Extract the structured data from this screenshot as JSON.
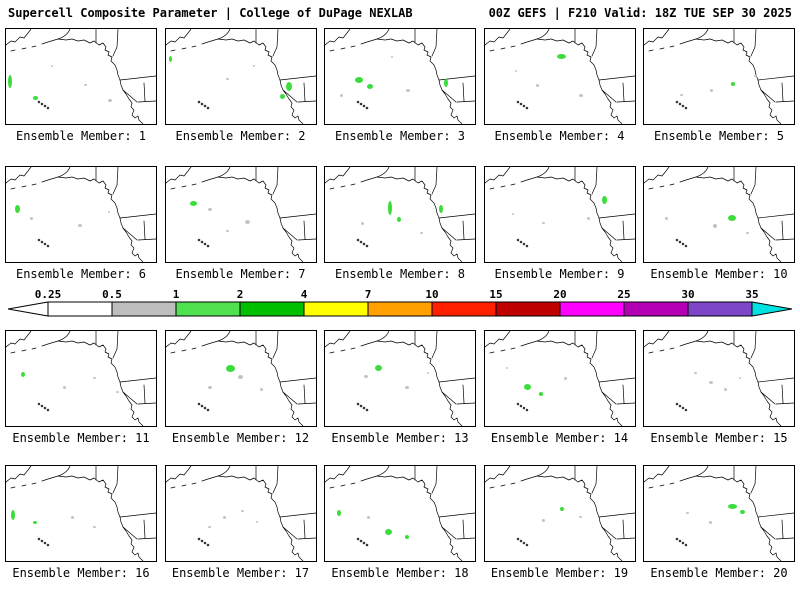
{
  "header": {
    "left": "Supercell Composite Parameter | College of DuPage NEXLAB",
    "right": "00Z GEFS | F210 Valid: 18Z TUE SEP 30 2025"
  },
  "colorbar": {
    "tick_labels": [
      "0.25",
      "0.5",
      "1",
      "2",
      "4",
      "7",
      "10",
      "15",
      "20",
      "25",
      "30",
      "35"
    ],
    "segment_colors": [
      "#ffffff",
      "#bebebe",
      "#50e150",
      "#00be00",
      "#ffff00",
      "#ffa000",
      "#ff2000",
      "#be0000",
      "#ff00ff",
      "#b400b4",
      "#7d46c8"
    ],
    "left_arrow_color": "#ffffff",
    "right_arrow_color": "#00e1e1",
    "border_color": "#000000"
  },
  "speckle_colors": {
    "g": "#3cdc3c",
    "y": "#c3c3c3"
  },
  "members": [
    {
      "label": "Ensemble Member: 1",
      "speckles": [
        [
          1,
          48,
          4,
          13,
          "g"
        ],
        [
          18,
          70,
          5,
          4,
          "g"
        ],
        [
          52,
          58,
          3,
          2,
          "y"
        ],
        [
          68,
          74,
          4,
          3,
          "y"
        ],
        [
          30,
          38,
          2,
          2,
          "y"
        ]
      ]
    },
    {
      "label": "Ensemble Member: 2",
      "speckles": [
        [
          2,
          28,
          3,
          6,
          "g"
        ],
        [
          80,
          56,
          6,
          9,
          "g"
        ],
        [
          76,
          68,
          5,
          5,
          "g"
        ],
        [
          40,
          52,
          3,
          2,
          "y"
        ],
        [
          58,
          38,
          2,
          2,
          "y"
        ]
      ]
    },
    {
      "label": "Ensemble Member: 3",
      "speckles": [
        [
          20,
          50,
          8,
          6,
          "g"
        ],
        [
          28,
          58,
          6,
          5,
          "g"
        ],
        [
          79,
          53,
          4,
          8,
          "g"
        ],
        [
          10,
          68,
          3,
          3,
          "y"
        ],
        [
          54,
          63,
          4,
          3,
          "y"
        ],
        [
          44,
          28,
          2,
          2,
          "y"
        ]
      ]
    },
    {
      "label": "Ensemble Member: 4",
      "speckles": [
        [
          48,
          26,
          9,
          5,
          "g"
        ],
        [
          34,
          58,
          3,
          3,
          "y"
        ],
        [
          63,
          68,
          4,
          3,
          "y"
        ],
        [
          20,
          43,
          2,
          2,
          "y"
        ]
      ]
    },
    {
      "label": "Ensemble Member: 5",
      "speckles": [
        [
          58,
          56,
          4,
          4,
          "g"
        ],
        [
          44,
          63,
          3,
          3,
          "y"
        ],
        [
          73,
          48,
          3,
          2,
          "y"
        ],
        [
          24,
          68,
          3,
          2,
          "y"
        ]
      ]
    },
    {
      "label": "Ensemble Member: 6",
      "speckles": [
        [
          6,
          40,
          5,
          8,
          "g"
        ],
        [
          16,
          53,
          3,
          3,
          "y"
        ],
        [
          48,
          60,
          4,
          3,
          "y"
        ],
        [
          68,
          46,
          2,
          2,
          "y"
        ]
      ]
    },
    {
      "label": "Ensemble Member: 7",
      "speckles": [
        [
          16,
          36,
          7,
          5,
          "g"
        ],
        [
          28,
          43,
          4,
          3,
          "y"
        ],
        [
          53,
          56,
          5,
          4,
          "y"
        ],
        [
          40,
          66,
          3,
          2,
          "y"
        ]
      ]
    },
    {
      "label": "Ensemble Member: 8",
      "speckles": [
        [
          42,
          36,
          4,
          14,
          "g"
        ],
        [
          48,
          53,
          4,
          5,
          "g"
        ],
        [
          76,
          40,
          4,
          8,
          "g"
        ],
        [
          24,
          58,
          3,
          3,
          "y"
        ],
        [
          63,
          68,
          3,
          2,
          "y"
        ]
      ]
    },
    {
      "label": "Ensemble Member: 9",
      "speckles": [
        [
          78,
          30,
          5,
          8,
          "g"
        ],
        [
          68,
          53,
          3,
          3,
          "y"
        ],
        [
          38,
          58,
          3,
          2,
          "y"
        ],
        [
          18,
          48,
          2,
          2,
          "y"
        ]
      ]
    },
    {
      "label": "Ensemble Member: 10",
      "speckles": [
        [
          56,
          50,
          8,
          6,
          "g"
        ],
        [
          46,
          60,
          4,
          4,
          "y"
        ],
        [
          14,
          53,
          3,
          3,
          "y"
        ],
        [
          68,
          68,
          3,
          2,
          "y"
        ]
      ]
    },
    {
      "label": "Ensemble Member: 11",
      "speckles": [
        [
          10,
          43,
          4,
          5,
          "g"
        ],
        [
          38,
          58,
          3,
          3,
          "y"
        ],
        [
          58,
          48,
          3,
          2,
          "y"
        ],
        [
          73,
          63,
          3,
          2,
          "y"
        ]
      ]
    },
    {
      "label": "Ensemble Member: 12",
      "speckles": [
        [
          40,
          36,
          9,
          7,
          "g"
        ],
        [
          48,
          46,
          5,
          4,
          "y"
        ],
        [
          28,
          58,
          4,
          3,
          "y"
        ],
        [
          63,
          60,
          3,
          3,
          "y"
        ]
      ]
    },
    {
      "label": "Ensemble Member: 13",
      "speckles": [
        [
          33,
          36,
          7,
          6,
          "g"
        ],
        [
          26,
          46,
          4,
          3,
          "y"
        ],
        [
          53,
          58,
          4,
          3,
          "y"
        ],
        [
          68,
          43,
          2,
          2,
          "y"
        ]
      ]
    },
    {
      "label": "Ensemble Member: 14",
      "speckles": [
        [
          26,
          56,
          7,
          6,
          "g"
        ],
        [
          36,
          64,
          4,
          4,
          "g"
        ],
        [
          53,
          48,
          3,
          3,
          "y"
        ],
        [
          14,
          38,
          2,
          2,
          "y"
        ]
      ]
    },
    {
      "label": "Ensemble Member: 15",
      "speckles": [
        [
          43,
          53,
          4,
          3,
          "y"
        ],
        [
          53,
          60,
          3,
          3,
          "y"
        ],
        [
          33,
          43,
          3,
          2,
          "y"
        ],
        [
          63,
          48,
          2,
          2,
          "y"
        ]
      ]
    },
    {
      "label": "Ensemble Member: 16",
      "speckles": [
        [
          3,
          46,
          4,
          10,
          "g"
        ],
        [
          18,
          58,
          4,
          3,
          "g"
        ],
        [
          43,
          53,
          3,
          3,
          "y"
        ],
        [
          58,
          63,
          3,
          2,
          "y"
        ]
      ]
    },
    {
      "label": "Ensemble Member: 17",
      "speckles": [
        [
          38,
          53,
          3,
          3,
          "y"
        ],
        [
          50,
          46,
          3,
          2,
          "y"
        ],
        [
          28,
          63,
          3,
          2,
          "y"
        ],
        [
          60,
          58,
          2,
          2,
          "y"
        ]
      ]
    },
    {
      "label": "Ensemble Member: 18",
      "speckles": [
        [
          40,
          66,
          7,
          6,
          "g"
        ],
        [
          8,
          46,
          4,
          6,
          "g"
        ],
        [
          53,
          73,
          4,
          4,
          "g"
        ],
        [
          28,
          53,
          3,
          3,
          "y"
        ]
      ]
    },
    {
      "label": "Ensemble Member: 19",
      "speckles": [
        [
          50,
          43,
          4,
          4,
          "g"
        ],
        [
          38,
          56,
          3,
          3,
          "y"
        ],
        [
          63,
          53,
          3,
          2,
          "y"
        ]
      ]
    },
    {
      "label": "Ensemble Member: 20",
      "speckles": [
        [
          56,
          40,
          9,
          5,
          "g"
        ],
        [
          64,
          46,
          5,
          4,
          "g"
        ],
        [
          43,
          58,
          3,
          3,
          "y"
        ],
        [
          28,
          48,
          3,
          2,
          "y"
        ]
      ]
    }
  ]
}
